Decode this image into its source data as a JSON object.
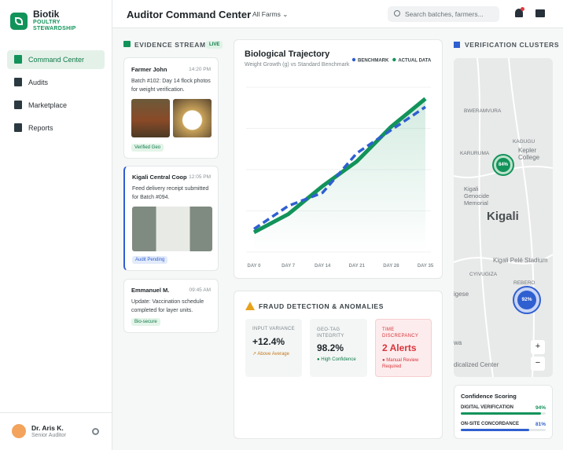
{
  "brand": {
    "name": "Biotik",
    "tagline": "POULTRY STEWARDSHIP"
  },
  "nav": [
    "Command Center",
    "Audits",
    "Marketplace",
    "Reports"
  ],
  "user": {
    "name": "Dr. Aris K.",
    "role": "Senior Auditor"
  },
  "header": {
    "title": "Auditor Command Center",
    "filter": "All Farms",
    "search_placeholder": "Search batches, farmers..."
  },
  "evidence": {
    "title": "EVIDENCE STREAM",
    "badge": "LIVE",
    "items": [
      {
        "author": "Farmer John",
        "time": "14:20 PM",
        "text": "Batch #102: Day 14 flock photos for weight verification.",
        "tag": "Verified Geo"
      },
      {
        "author": "Kigali Central Coop",
        "time": "12:05 PM",
        "text": "Feed delivery receipt submitted for Batch #094.",
        "tag": "Audit Pending"
      },
      {
        "author": "Emmanuel M.",
        "time": "09:45 AM",
        "text": "Update: Vaccination schedule completed for layer units.",
        "tag": "Bio-secure"
      }
    ]
  },
  "chart_data": {
    "type": "line",
    "title": "Biological Trajectory",
    "subtitle": "Weight Growth (g) vs Standard Benchmark",
    "categories": [
      "DAY 0",
      "DAY 7",
      "DAY 14",
      "DAY 21",
      "DAY 28",
      "DAY 35"
    ],
    "ylim": [
      0,
      100
    ],
    "series": [
      {
        "name": "BENCHMARK",
        "color": "#2f5fd0",
        "values": [
          14,
          28,
          36,
          60,
          74,
          88
        ]
      },
      {
        "name": "ACTUAL DATA",
        "color": "#12935a",
        "values": [
          12,
          23,
          40,
          55,
          76,
          93
        ]
      }
    ]
  },
  "fraud": {
    "title": "FRAUD DETECTION & ANOMALIES",
    "metrics": [
      {
        "label": "INPUT VARIANCE",
        "value": "+12.4%",
        "note": "Above Average"
      },
      {
        "label": "GEO-TAG INTEGRITY",
        "value": "98.2%",
        "note": "High Confidence"
      },
      {
        "label": "TIME DISCREPANCY",
        "value": "2 Alerts",
        "note": "Manual Review Required"
      }
    ]
  },
  "clusters": {
    "title": "VERIFICATION CLUSTERS",
    "map_labels": [
      "BWERAMVURA",
      "KAGUGU",
      "Kepler College",
      "KARURUMA",
      "Kigali Genocide Memorial",
      "Kigali",
      "Kigali Pelé Stadium",
      "CYIVUGIZA",
      "REBERO",
      "igese",
      "wa",
      "dicalized Center"
    ],
    "markers": [
      "84%",
      "92%"
    ]
  },
  "confidence": {
    "title": "Confidence Scoring",
    "rows": [
      {
        "label": "DIGITAL VERIFICATION",
        "value": 94,
        "value_label": "94%"
      },
      {
        "label": "ON-SITE CONCORDANCE",
        "value": 81,
        "value_label": "81%"
      }
    ]
  }
}
